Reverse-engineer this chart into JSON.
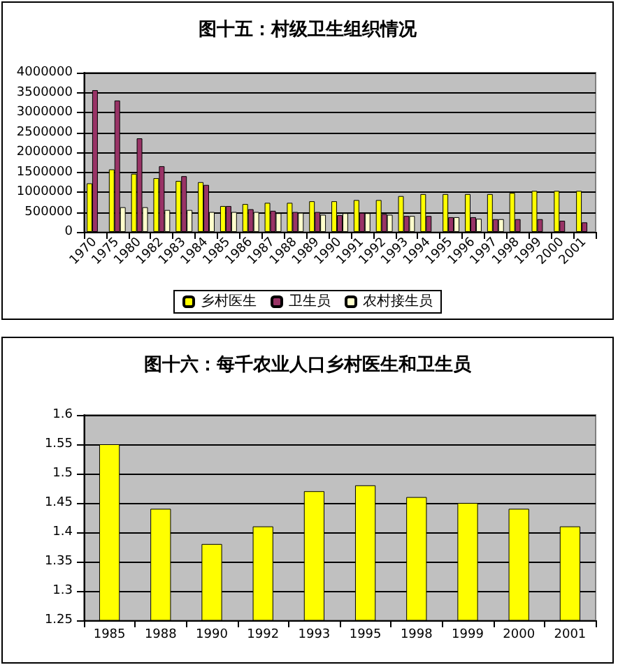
{
  "chart_data": [
    {
      "type": "bar",
      "title": "图十五：村级卫生组织情况",
      "categories": [
        "1970",
        "1975",
        "1980",
        "1982",
        "1983",
        "1984",
        "1985",
        "1986",
        "1987",
        "1988",
        "1989",
        "1990",
        "1991",
        "1992",
        "1993",
        "1994",
        "1995",
        "1996",
        "1997",
        "1998",
        "1999",
        "2000",
        "2001"
      ],
      "series": [
        {
          "name": "乡村医生",
          "color": "#ffff00",
          "values": [
            1220000,
            1570000,
            1460000,
            1350000,
            1280000,
            1250000,
            650000,
            700000,
            730000,
            730000,
            770000,
            770000,
            800000,
            800000,
            900000,
            950000,
            950000,
            950000,
            950000,
            980000,
            1030000,
            1030000,
            1030000
          ]
        },
        {
          "name": "卫生员",
          "color": "#993366",
          "values": [
            3560000,
            3300000,
            2350000,
            1650000,
            1400000,
            1180000,
            650000,
            570000,
            530000,
            500000,
            500000,
            420000,
            480000,
            450000,
            400000,
            400000,
            370000,
            370000,
            320000,
            320000,
            320000,
            280000,
            240000
          ]
        },
        {
          "name": "农村接生员",
          "color": "#ffffcc",
          "values": [
            null,
            620000,
            620000,
            550000,
            550000,
            500000,
            500000,
            500000,
            470000,
            480000,
            430000,
            470000,
            470000,
            430000,
            400000,
            null,
            370000,
            330000,
            320000,
            null,
            null,
            null,
            null
          ]
        }
      ],
      "ylim": [
        0,
        4000000
      ],
      "yticks": [
        0,
        500000,
        1000000,
        1500000,
        2000000,
        2500000,
        3000000,
        3500000,
        4000000
      ],
      "grid": "y",
      "legend": "bottom"
    },
    {
      "type": "bar",
      "title": "图十六：每千农业人口乡村医生和卫生员",
      "categories": [
        "1985",
        "1988",
        "1990",
        "1992",
        "1993",
        "1995",
        "1998",
        "1999",
        "2000",
        "2001"
      ],
      "series": [
        {
          "color": "#ffff00",
          "values": [
            1.55,
            1.44,
            1.38,
            1.41,
            1.47,
            1.48,
            1.46,
            1.45,
            1.44,
            1.41
          ]
        }
      ],
      "ylim": [
        1.25,
        1.6
      ],
      "yticks": [
        1.25,
        1.3,
        1.35,
        1.4,
        1.45,
        1.5,
        1.55,
        1.6
      ],
      "grid": "y",
      "legend": false
    }
  ]
}
